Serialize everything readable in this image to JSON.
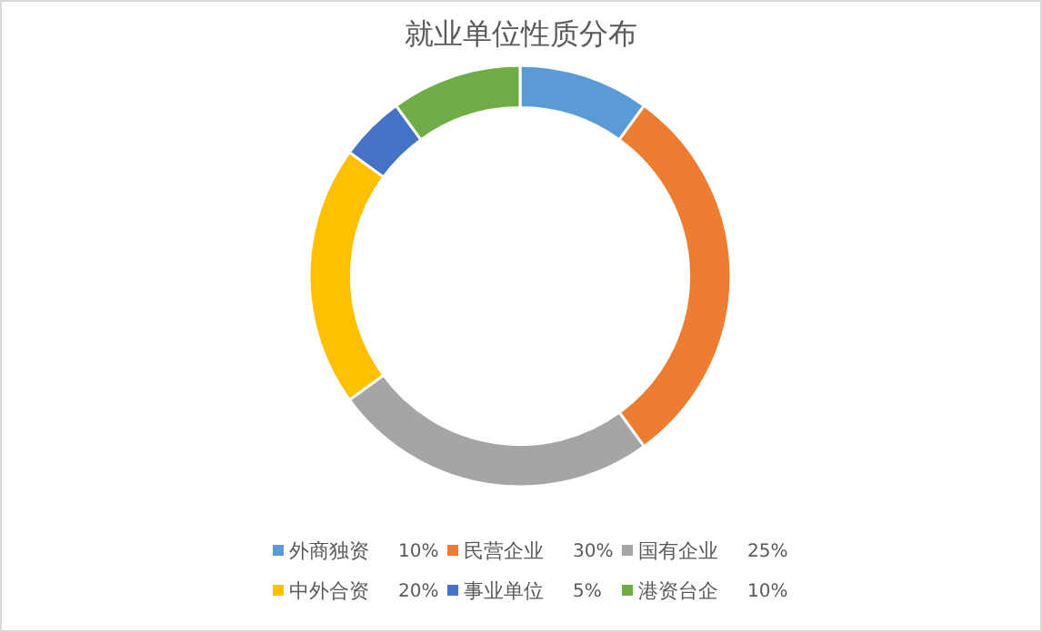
{
  "chart_data": {
    "type": "donut",
    "title": "就业单位性质分布",
    "categories": [
      "外商独资",
      "民营企业",
      "国有企业",
      "中外合资",
      "事业单位",
      "港资台企"
    ],
    "values": [
      10,
      30,
      25,
      20,
      5,
      10
    ],
    "value_labels": [
      "10%",
      "30%",
      "25%",
      "20%",
      "5%",
      "10%"
    ],
    "colors": [
      "#5b9bd5",
      "#ed7d31",
      "#a5a5a5",
      "#ffc000",
      "#4472c4",
      "#70ad47"
    ],
    "legend": "bottom"
  }
}
